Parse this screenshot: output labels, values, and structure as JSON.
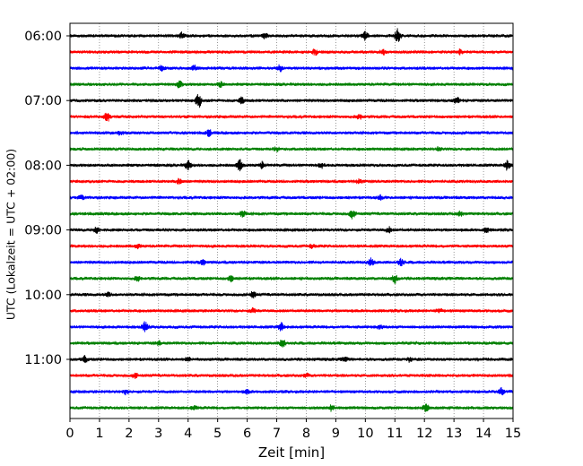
{
  "chart_data": {
    "type": "line",
    "title": "",
    "xlabel": "Zeit  [min]",
    "ylabel": "UTC (Lokalzeit = UTC + 02:00)",
    "xlim": [
      0,
      15
    ],
    "x_ticks": [
      0,
      1,
      2,
      3,
      4,
      5,
      6,
      7,
      8,
      9,
      10,
      11,
      12,
      13,
      14,
      15
    ],
    "y_tick_labels": [
      "06:00",
      "07:00",
      "08:00",
      "09:00",
      "10:00",
      "11:00"
    ],
    "row_minutes": 15,
    "row_colors": [
      "#000000",
      "#ff0000",
      "#0000ff",
      "#008000"
    ],
    "vertical_grid": true,
    "rows": [
      {
        "start": "06:00",
        "events": [
          [
            11.1,
            0.8
          ],
          [
            10.0,
            0.5
          ],
          [
            3.8,
            0.35
          ],
          [
            6.6,
            0.3
          ]
        ]
      },
      {
        "start": "06:15",
        "events": [
          [
            10.6,
            0.3
          ],
          [
            13.2,
            0.25
          ],
          [
            8.3,
            0.3
          ]
        ]
      },
      {
        "start": "06:30",
        "events": [
          [
            4.2,
            0.3
          ],
          [
            7.1,
            0.35
          ],
          [
            3.1,
            0.25
          ]
        ]
      },
      {
        "start": "06:45",
        "events": [
          [
            3.7,
            0.55
          ],
          [
            5.1,
            0.3
          ]
        ]
      },
      {
        "start": "07:00",
        "events": [
          [
            4.35,
            0.9
          ],
          [
            5.8,
            0.35
          ],
          [
            13.1,
            0.35
          ]
        ]
      },
      {
        "start": "07:15",
        "events": [
          [
            1.25,
            0.6
          ],
          [
            9.8,
            0.25
          ]
        ]
      },
      {
        "start": "07:30",
        "events": [
          [
            4.7,
            0.35
          ],
          [
            1.7,
            0.2
          ]
        ]
      },
      {
        "start": "07:45",
        "events": [
          [
            12.5,
            0.25
          ],
          [
            7.0,
            0.2
          ]
        ]
      },
      {
        "start": "08:00",
        "events": [
          [
            4.0,
            0.55
          ],
          [
            5.75,
            0.6
          ],
          [
            14.8,
            0.5
          ],
          [
            6.5,
            0.35
          ],
          [
            8.5,
            0.3
          ]
        ]
      },
      {
        "start": "08:15",
        "events": [
          [
            3.7,
            0.3
          ],
          [
            9.8,
            0.25
          ]
        ]
      },
      {
        "start": "08:30",
        "events": [
          [
            0.4,
            0.25
          ],
          [
            10.5,
            0.2
          ]
        ]
      },
      {
        "start": "08:45",
        "events": [
          [
            5.85,
            0.35
          ],
          [
            9.55,
            0.5
          ],
          [
            13.2,
            0.25
          ]
        ]
      },
      {
        "start": "09:00",
        "events": [
          [
            0.9,
            0.35
          ],
          [
            10.8,
            0.3
          ],
          [
            14.1,
            0.25
          ]
        ]
      },
      {
        "start": "09:15",
        "events": [
          [
            2.3,
            0.2
          ],
          [
            8.2,
            0.2
          ]
        ]
      },
      {
        "start": "09:30",
        "events": [
          [
            10.2,
            0.45
          ],
          [
            11.2,
            0.4
          ],
          [
            4.5,
            0.25
          ]
        ]
      },
      {
        "start": "09:45",
        "events": [
          [
            11.0,
            0.45
          ],
          [
            5.45,
            0.3
          ],
          [
            2.3,
            0.25
          ]
        ]
      },
      {
        "start": "10:00",
        "events": [
          [
            6.2,
            0.35
          ],
          [
            1.3,
            0.2
          ]
        ]
      },
      {
        "start": "10:15",
        "events": [
          [
            6.2,
            0.25
          ],
          [
            12.5,
            0.2
          ]
        ]
      },
      {
        "start": "10:30",
        "events": [
          [
            2.55,
            0.6
          ],
          [
            7.15,
            0.45
          ],
          [
            10.5,
            0.2
          ]
        ]
      },
      {
        "start": "10:45",
        "events": [
          [
            7.2,
            0.5
          ],
          [
            3.0,
            0.2
          ]
        ]
      },
      {
        "start": "11:00",
        "events": [
          [
            0.5,
            0.35
          ],
          [
            4.0,
            0.25
          ],
          [
            9.3,
            0.25
          ],
          [
            11.5,
            0.25
          ]
        ]
      },
      {
        "start": "11:15",
        "events": [
          [
            2.2,
            0.25
          ],
          [
            8.0,
            0.2
          ]
        ]
      },
      {
        "start": "11:30",
        "events": [
          [
            1.9,
            0.25
          ],
          [
            14.6,
            0.4
          ],
          [
            6.0,
            0.2
          ]
        ]
      },
      {
        "start": "11:45",
        "events": [
          [
            8.85,
            0.35
          ],
          [
            12.05,
            0.4
          ],
          [
            4.2,
            0.2
          ]
        ]
      }
    ]
  }
}
